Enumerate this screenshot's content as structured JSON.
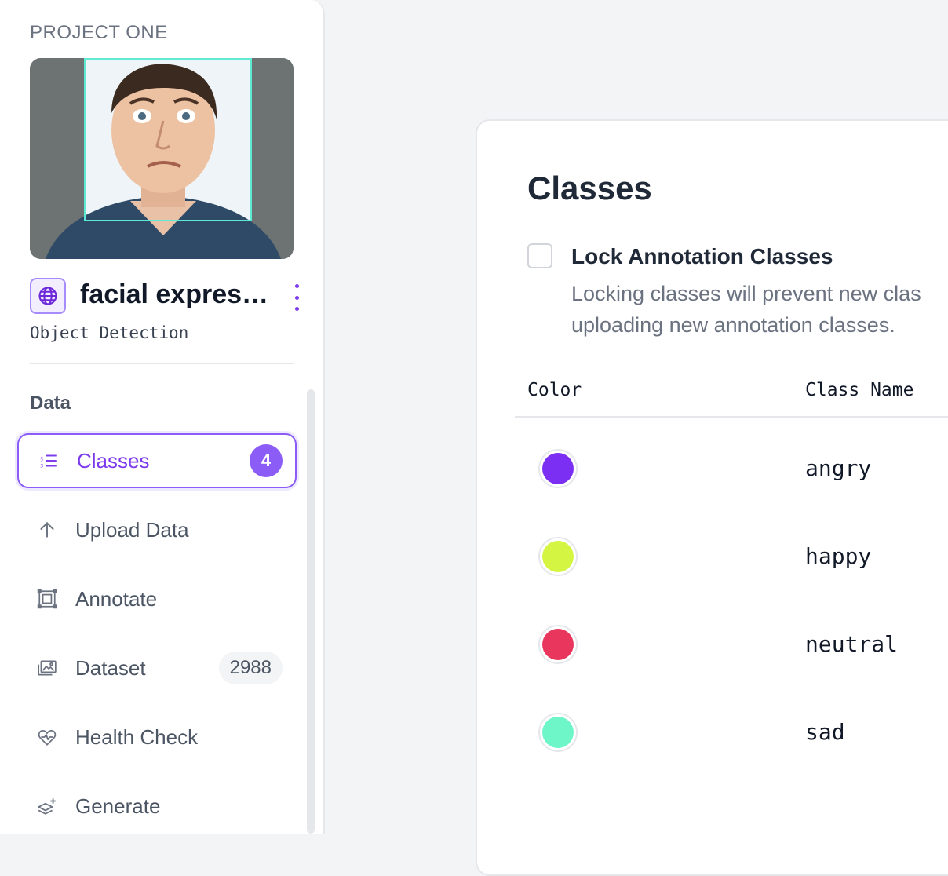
{
  "sidebar": {
    "project_label": "PROJECT ONE",
    "project_name": "facial expressi...",
    "project_type": "Object Detection",
    "section_title": "Data",
    "items": [
      {
        "label": "Classes",
        "icon": "numbered-list-icon",
        "badge": "4",
        "active": true
      },
      {
        "label": "Upload Data",
        "icon": "arrow-up-icon"
      },
      {
        "label": "Annotate",
        "icon": "bounding-box-icon"
      },
      {
        "label": "Dataset",
        "icon": "images-icon",
        "badge": "2988"
      },
      {
        "label": "Health Check",
        "icon": "heart-pulse-icon"
      },
      {
        "label": "Generate",
        "icon": "layers-sparkle-icon"
      }
    ]
  },
  "main": {
    "title": "Classes",
    "lock": {
      "title": "Lock Annotation Classes",
      "desc_line1": "Locking classes will prevent new clas",
      "desc_line2": "uploading new annotation classes.",
      "checked": false
    },
    "table": {
      "headers": {
        "color": "Color",
        "name": "Class Name"
      },
      "rows": [
        {
          "name": "angry",
          "color": "#7b2ff2"
        },
        {
          "name": "happy",
          "color": "#d4f542"
        },
        {
          "name": "neutral",
          "color": "#e8365d"
        },
        {
          "name": "sad",
          "color": "#6ef5c8"
        }
      ]
    }
  },
  "colors": {
    "accent": "#7c3aed",
    "box_outline": "#5eead4"
  }
}
